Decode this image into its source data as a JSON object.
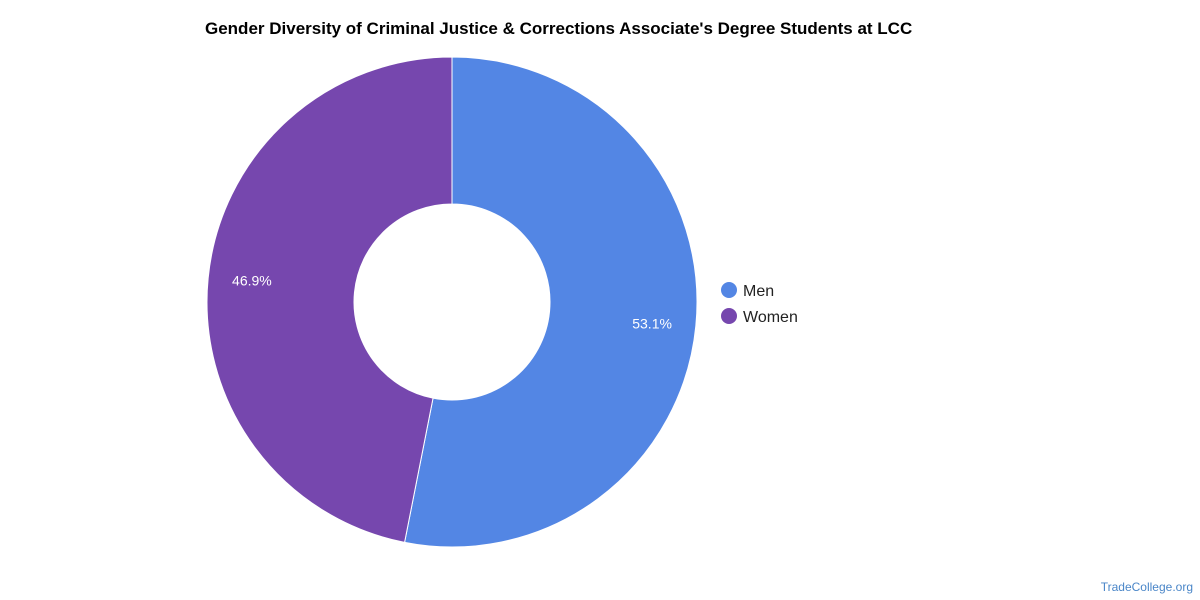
{
  "chart_data": {
    "type": "pie",
    "variant": "donut",
    "title": "Gender Diversity of Criminal Justice & Corrections Associate's Degree Students at LCC",
    "slices": [
      {
        "name": "Men",
        "value": 53.1,
        "label": "53.1%",
        "color": "#5386e4"
      },
      {
        "name": "Women",
        "value": 46.9,
        "label": "46.9%",
        "color": "#7647ae"
      }
    ],
    "legend": {
      "position": "right",
      "items": [
        "Men",
        "Women"
      ]
    }
  },
  "credit": "TradeCollege.org"
}
